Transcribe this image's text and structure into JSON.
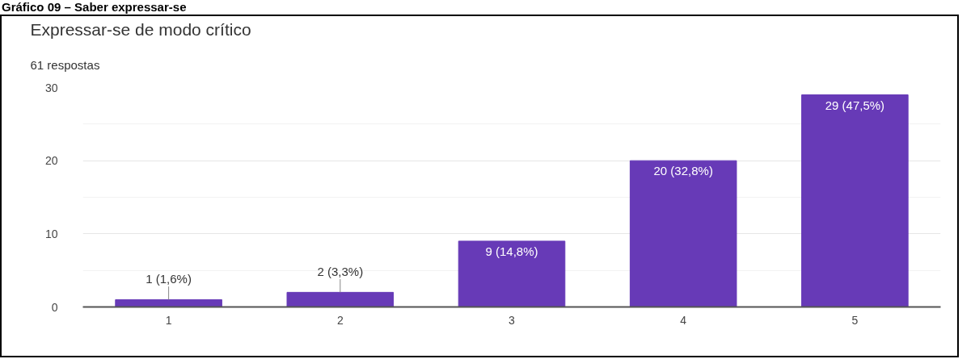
{
  "chart_data": {
    "type": "bar",
    "title": "Expressar-se de modo crítico",
    "subtitle": "61 respostas",
    "annotations": [
      "Gráfico 09 – Saber expressar-se"
    ],
    "categories": [
      "1",
      "2",
      "3",
      "4",
      "5"
    ],
    "values": [
      1,
      2,
      9,
      20,
      29
    ],
    "value_labels": [
      "1 (1,6%)",
      "2 (3,3%)",
      "9 (14,8%)",
      "20 (32,8%)",
      "29 (47,5%)"
    ],
    "color": "#673ab7",
    "ylim": [
      0,
      30
    ],
    "yticks": [
      0,
      10,
      20,
      30
    ],
    "grid": "y"
  }
}
